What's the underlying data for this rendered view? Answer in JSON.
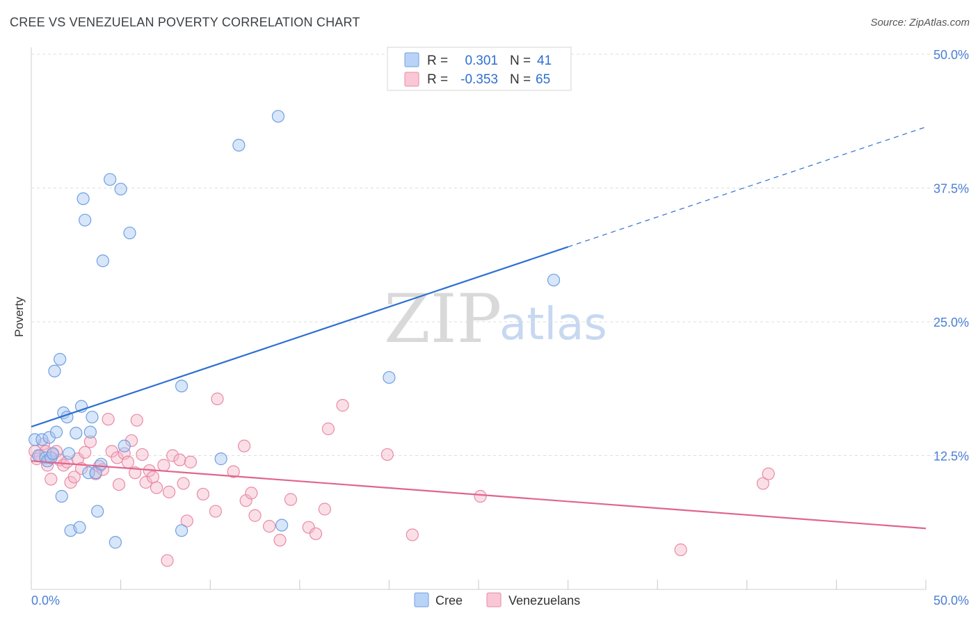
{
  "header": {
    "title": "CREE VS VENEZUELAN POVERTY CORRELATION CHART",
    "source": "Source: ZipAtlas.com"
  },
  "watermark": {
    "zip": "ZIP",
    "atlas": "atlas"
  },
  "legend": {
    "rows": [
      {
        "r_label": "R =",
        "r_value": "0.301",
        "n_label": "N =",
        "n_value": "41",
        "color": "#a8c8f5",
        "stroke": "#6f9fe0"
      },
      {
        "r_label": "R =",
        "r_value": "-0.353",
        "n_label": "N =",
        "n_value": "65",
        "color": "#f7b9ca",
        "stroke": "#e88aa5"
      }
    ]
  },
  "bottom_legend": [
    {
      "label": "Cree",
      "color": "#a8c8f5",
      "stroke": "#6f9fe0"
    },
    {
      "label": "Venezuelans",
      "color": "#f7b9ca",
      "stroke": "#e88aa5"
    }
  ],
  "chart_data": {
    "type": "scatter",
    "title": "CREE VS VENEZUELAN POVERTY CORRELATION CHART",
    "ylabel": "Poverty",
    "xlabel": "",
    "xlim": [
      0,
      50
    ],
    "ylim": [
      0,
      50
    ],
    "x_tick_labels": [
      {
        "value": 0,
        "label": "0.0%"
      },
      {
        "value": 50,
        "label": "50.0%"
      }
    ],
    "y_tick_labels": [
      {
        "value": 12.5,
        "label": "12.5%"
      },
      {
        "value": 25,
        "label": "25.0%"
      },
      {
        "value": 37.5,
        "label": "37.5%"
      },
      {
        "value": 50,
        "label": "50.0%"
      }
    ],
    "x_minor_ticks": [
      0,
      5,
      10,
      15,
      20,
      25,
      30,
      35,
      40,
      45,
      50
    ],
    "grid": true,
    "series": [
      {
        "name": "Cree",
        "color": "#a8c8f5",
        "stroke": "#6f9fe0",
        "line_color": "#2d6fd2",
        "points": [
          [
            0.2,
            14.0
          ],
          [
            0.4,
            12.5
          ],
          [
            0.6,
            14.0
          ],
          [
            0.8,
            12.3
          ],
          [
            0.9,
            12.0
          ],
          [
            1.0,
            14.2
          ],
          [
            1.1,
            12.3
          ],
          [
            1.2,
            12.7
          ],
          [
            1.3,
            20.4
          ],
          [
            1.4,
            14.7
          ],
          [
            1.6,
            21.5
          ],
          [
            1.7,
            8.7
          ],
          [
            1.8,
            16.5
          ],
          [
            2.0,
            16.1
          ],
          [
            2.1,
            12.7
          ],
          [
            2.2,
            5.5
          ],
          [
            2.5,
            14.6
          ],
          [
            2.7,
            5.8
          ],
          [
            2.8,
            17.1
          ],
          [
            2.9,
            36.5
          ],
          [
            3.0,
            34.5
          ],
          [
            3.2,
            10.9
          ],
          [
            3.3,
            14.7
          ],
          [
            3.4,
            16.1
          ],
          [
            3.6,
            10.9
          ],
          [
            3.7,
            7.3
          ],
          [
            3.9,
            11.7
          ],
          [
            4.0,
            30.7
          ],
          [
            4.4,
            38.3
          ],
          [
            4.7,
            4.4
          ],
          [
            5.0,
            37.4
          ],
          [
            5.2,
            13.4
          ],
          [
            5.5,
            33.3
          ],
          [
            8.4,
            19.0
          ],
          [
            8.4,
            5.5
          ],
          [
            10.6,
            12.2
          ],
          [
            11.6,
            41.5
          ],
          [
            13.8,
            44.2
          ],
          [
            14.0,
            6.0
          ],
          [
            20.0,
            19.8
          ],
          [
            29.2,
            28.9
          ]
        ],
        "trend": {
          "x0": 0,
          "y0": 15.2,
          "x1": 30,
          "y1": 32.0,
          "dashed_to_x": 50,
          "dashed_to_y": 43.2
        }
      },
      {
        "name": "Venezuelans",
        "color": "#f7b9ca",
        "stroke": "#e88aa5",
        "line_color": "#e0648e",
        "points": [
          [
            0.2,
            12.9
          ],
          [
            0.3,
            12.2
          ],
          [
            0.5,
            12.5
          ],
          [
            0.7,
            13.6
          ],
          [
            0.8,
            12.9
          ],
          [
            0.9,
            11.6
          ],
          [
            1.1,
            10.3
          ],
          [
            1.2,
            12.6
          ],
          [
            1.4,
            12.9
          ],
          [
            1.6,
            12.1
          ],
          [
            1.8,
            11.6
          ],
          [
            2.0,
            11.9
          ],
          [
            2.2,
            10.0
          ],
          [
            2.4,
            10.5
          ],
          [
            2.6,
            12.2
          ],
          [
            2.8,
            11.3
          ],
          [
            3.0,
            12.8
          ],
          [
            3.3,
            13.8
          ],
          [
            3.6,
            10.8
          ],
          [
            3.8,
            11.5
          ],
          [
            4.0,
            11.2
          ],
          [
            4.3,
            15.9
          ],
          [
            4.5,
            12.9
          ],
          [
            4.8,
            12.3
          ],
          [
            4.9,
            9.8
          ],
          [
            5.2,
            12.7
          ],
          [
            5.4,
            11.9
          ],
          [
            5.6,
            13.9
          ],
          [
            5.8,
            10.9
          ],
          [
            5.9,
            15.8
          ],
          [
            6.2,
            12.6
          ],
          [
            6.4,
            10.0
          ],
          [
            6.6,
            11.1
          ],
          [
            6.8,
            10.5
          ],
          [
            7.0,
            9.5
          ],
          [
            7.4,
            11.6
          ],
          [
            7.6,
            2.7
          ],
          [
            7.7,
            9.1
          ],
          [
            7.9,
            12.5
          ],
          [
            8.3,
            12.1
          ],
          [
            8.5,
            9.9
          ],
          [
            8.7,
            6.4
          ],
          [
            8.9,
            11.9
          ],
          [
            9.6,
            8.9
          ],
          [
            10.3,
            7.3
          ],
          [
            10.4,
            17.8
          ],
          [
            11.3,
            11.0
          ],
          [
            11.9,
            13.4
          ],
          [
            12.0,
            8.3
          ],
          [
            12.3,
            9.0
          ],
          [
            12.5,
            6.9
          ],
          [
            13.3,
            5.9
          ],
          [
            13.9,
            4.6
          ],
          [
            14.5,
            8.4
          ],
          [
            15.5,
            5.8
          ],
          [
            15.9,
            5.2
          ],
          [
            16.4,
            7.5
          ],
          [
            16.6,
            15.0
          ],
          [
            17.4,
            17.2
          ],
          [
            19.9,
            12.6
          ],
          [
            21.3,
            5.1
          ],
          [
            25.1,
            8.7
          ],
          [
            36.3,
            3.7
          ],
          [
            40.9,
            9.9
          ],
          [
            41.2,
            10.8
          ]
        ],
        "trend": {
          "x0": 0,
          "y0": 12.0,
          "x1": 50,
          "y1": 5.7
        }
      }
    ]
  }
}
